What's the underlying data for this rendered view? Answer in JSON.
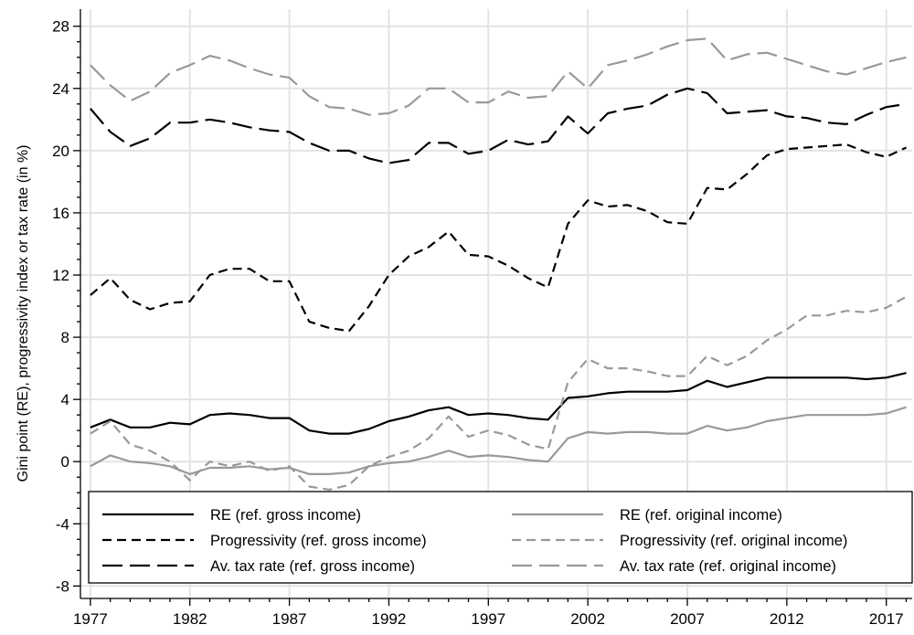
{
  "chart_data": {
    "type": "line",
    "ylabel": "Gini point (RE), progressivity index or tax rate (in %)",
    "xlabel": "",
    "title": "",
    "xlim": [
      1976.5,
      2018.3
    ],
    "ylim": [
      -8.8,
      29.1
    ],
    "x_ticks": [
      1977,
      1982,
      1987,
      1992,
      1997,
      2002,
      2007,
      2012,
      2017
    ],
    "y_ticks": [
      -8,
      -4,
      0,
      4,
      8,
      12,
      16,
      20,
      24,
      28
    ],
    "x_tick_labels": [
      "1977",
      "1982",
      "1987",
      "1992",
      "1997",
      "2002",
      "2007",
      "2012",
      "2017"
    ],
    "y_tick_labels": [
      "-8",
      "-4",
      "0",
      "4",
      "8",
      "12",
      "16",
      "20",
      "24",
      "28"
    ],
    "grid": true,
    "legend_placement": "bottom",
    "x": [
      1977,
      1978,
      1979,
      1980,
      1981,
      1982,
      1983,
      1984,
      1985,
      1986,
      1987,
      1988,
      1989,
      1990,
      1991,
      1992,
      1993,
      1994,
      1995,
      1996,
      1997,
      1998,
      1999,
      2000,
      2001,
      2002,
      2003,
      2004,
      2005,
      2006,
      2007,
      2008,
      2009,
      2010,
      2011,
      2012,
      2013,
      2014,
      2015,
      2016,
      2017,
      2018
    ],
    "series": [
      {
        "name": "RE (ref. gross income)",
        "color": "#000000",
        "dash": "solid",
        "values": [
          2.2,
          2.7,
          2.2,
          2.2,
          2.5,
          2.4,
          3.0,
          3.1,
          3.0,
          2.8,
          2.8,
          2.0,
          1.8,
          1.8,
          2.1,
          2.6,
          2.9,
          3.3,
          3.5,
          3.0,
          3.1,
          3.0,
          2.8,
          2.7,
          4.1,
          4.2,
          4.4,
          4.5,
          4.5,
          4.5,
          4.6,
          5.2,
          4.8,
          5.1,
          5.4,
          5.4,
          5.4,
          5.4,
          5.4,
          5.3,
          5.4,
          5.7
        ]
      },
      {
        "name": "Progressivity (ref. gross income)",
        "color": "#000000",
        "dash": "medium",
        "values": [
          10.7,
          11.8,
          10.4,
          9.8,
          10.2,
          10.3,
          12.0,
          12.4,
          12.4,
          11.6,
          11.6,
          9.0,
          8.6,
          8.4,
          10.0,
          12.0,
          13.2,
          13.8,
          14.8,
          13.3,
          13.2,
          12.6,
          11.8,
          11.2,
          15.3,
          16.8,
          16.4,
          16.5,
          16.1,
          15.4,
          15.3,
          17.6,
          17.5,
          18.5,
          19.7,
          20.1,
          20.2,
          20.3,
          20.4,
          19.9,
          19.6,
          20.2
        ]
      },
      {
        "name": "Av. tax rate (ref. gross income)",
        "color": "#000000",
        "dash": "long",
        "values": [
          22.7,
          21.2,
          20.3,
          20.8,
          21.8,
          21.8,
          22.0,
          21.8,
          21.5,
          21.3,
          21.2,
          20.5,
          20.0,
          20.0,
          19.5,
          19.2,
          19.4,
          20.5,
          20.5,
          19.8,
          20.0,
          20.7,
          20.4,
          20.6,
          22.2,
          21.1,
          22.4,
          22.7,
          22.9,
          23.6,
          24.0,
          23.7,
          22.4,
          22.5,
          22.6,
          22.2,
          22.1,
          21.8,
          21.7,
          22.3,
          22.8,
          23.0
        ]
      },
      {
        "name": "RE (ref. original income)",
        "color": "#999999",
        "dash": "solid",
        "values": [
          -0.3,
          0.4,
          0.0,
          -0.1,
          -0.3,
          -0.8,
          -0.4,
          -0.4,
          -0.3,
          -0.5,
          -0.4,
          -0.8,
          -0.8,
          -0.7,
          -0.3,
          -0.1,
          0.0,
          0.3,
          0.7,
          0.3,
          0.4,
          0.3,
          0.1,
          0.0,
          1.5,
          1.9,
          1.8,
          1.9,
          1.9,
          1.8,
          1.8,
          2.3,
          2.0,
          2.2,
          2.6,
          2.8,
          3.0,
          3.0,
          3.0,
          3.0,
          3.1,
          3.5
        ]
      },
      {
        "name": "Progressivity (ref. original income)",
        "color": "#999999",
        "dash": "medium",
        "values": [
          1.8,
          2.6,
          1.1,
          0.7,
          0.0,
          -1.2,
          0.0,
          -0.3,
          0.0,
          -0.6,
          -0.3,
          -1.6,
          -1.8,
          -1.5,
          -0.3,
          0.3,
          0.7,
          1.5,
          2.9,
          1.6,
          2.0,
          1.7,
          1.1,
          0.8,
          5.1,
          6.6,
          6.0,
          6.0,
          5.8,
          5.5,
          5.5,
          6.8,
          6.2,
          6.8,
          7.8,
          8.5,
          9.4,
          9.4,
          9.7,
          9.6,
          9.9,
          10.6
        ]
      },
      {
        "name": "Av. tax rate (ref. original income)",
        "color": "#999999",
        "dash": "long",
        "values": [
          25.5,
          24.2,
          23.2,
          23.8,
          25.0,
          25.5,
          26.1,
          25.8,
          25.3,
          24.9,
          24.7,
          23.5,
          22.8,
          22.7,
          22.3,
          22.4,
          22.9,
          24.0,
          24.0,
          23.1,
          23.1,
          23.8,
          23.4,
          23.5,
          25.1,
          24.0,
          25.5,
          25.8,
          26.2,
          26.7,
          27.1,
          27.2,
          25.8,
          26.2,
          26.3,
          25.9,
          25.5,
          25.1,
          24.9,
          25.3,
          25.7,
          26.0
        ]
      }
    ]
  }
}
